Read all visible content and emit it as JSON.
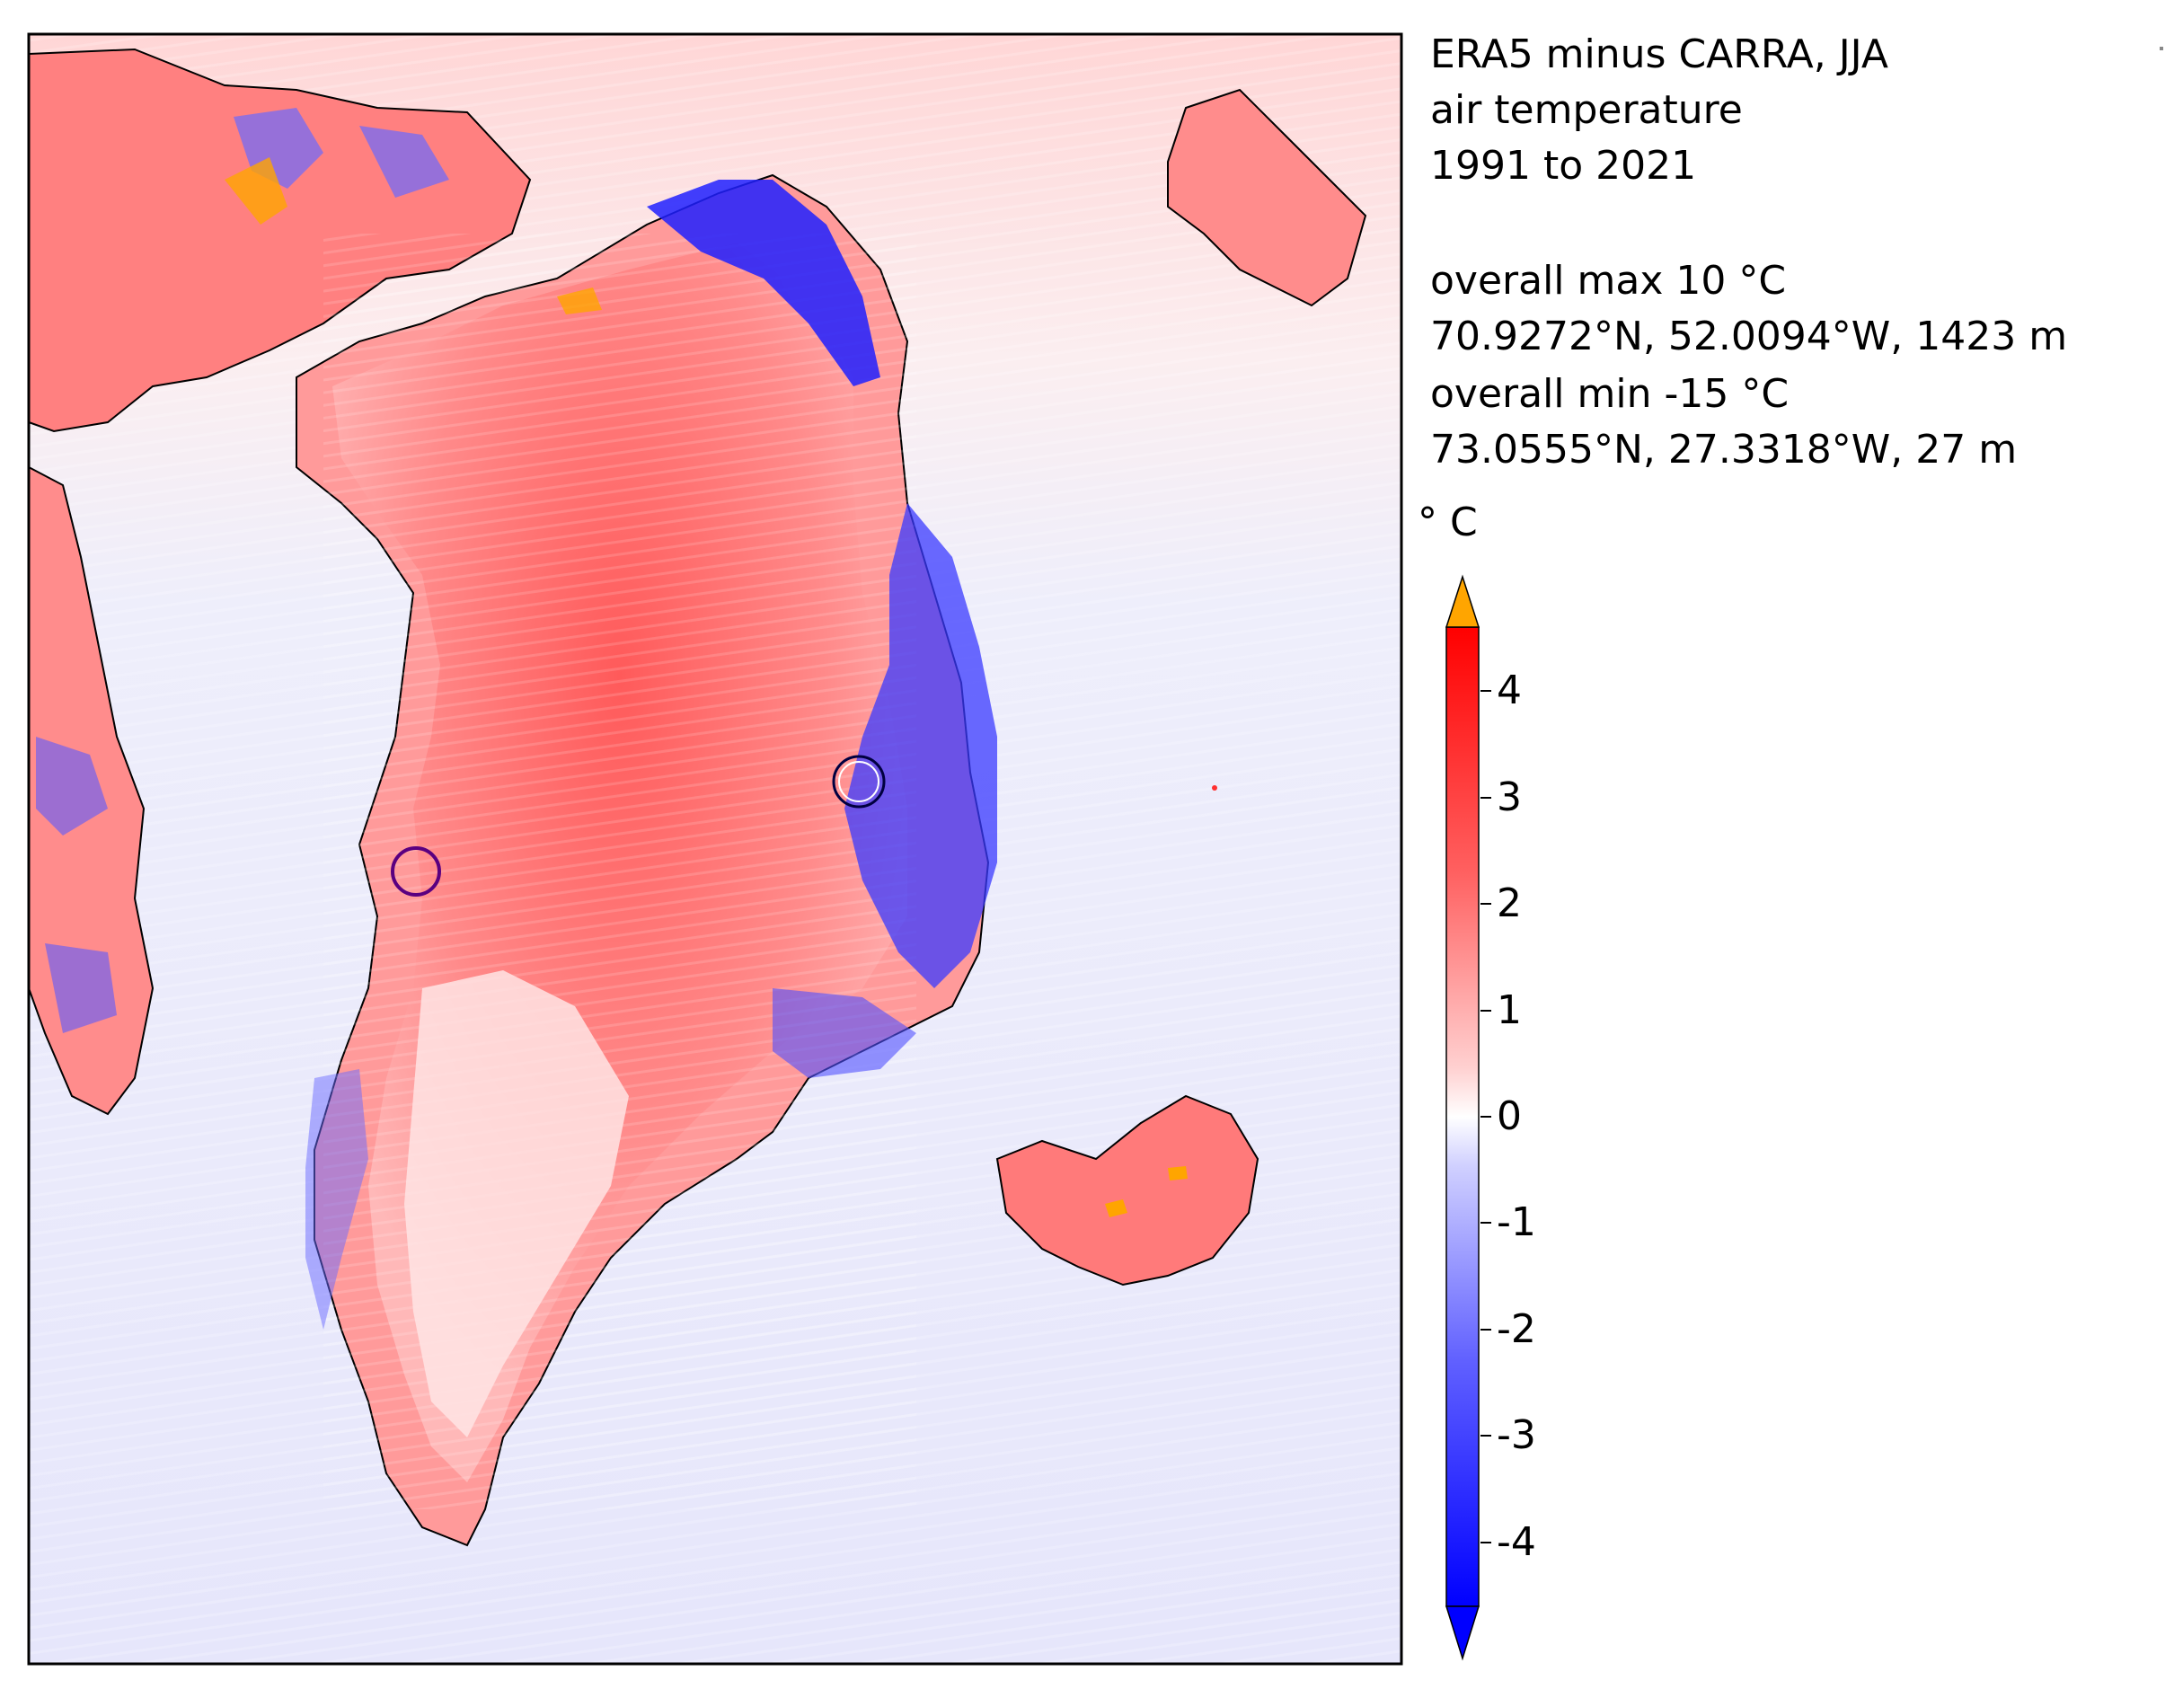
{
  "title_lines": [
    "ERA5 minus CARRA, JJA",
    "air temperature",
    "1991 to 2021"
  ],
  "stats": {
    "max_label": "overall max 10 °C",
    "max_location": "70.9272°N, 52.0094°W, 1423 m",
    "min_label": "overall min -15 °C",
    "min_location": "73.0555°N, 27.3318°W, 27 m"
  },
  "colorbar": {
    "unit": "° C",
    "ticks": [
      "4",
      "3",
      "2",
      "1",
      "0",
      "-1",
      "-2",
      "-3",
      "-4"
    ],
    "tick_values": [
      4,
      3,
      2,
      1,
      0,
      -1,
      -2,
      -3,
      -4
    ],
    "range": [
      -4.6,
      4.6
    ],
    "extend": "both",
    "over_color": "#FFA500",
    "colors": {
      "max": "#FF0000",
      "zero": "#FFFFFF",
      "min": "#0000FF"
    }
  },
  "map": {
    "field": "ERA5 minus CARRA air temperature difference",
    "markers": [
      {
        "kind": "max",
        "color": "#5a0080"
      },
      {
        "kind": "min",
        "color": "#000040"
      }
    ]
  }
}
